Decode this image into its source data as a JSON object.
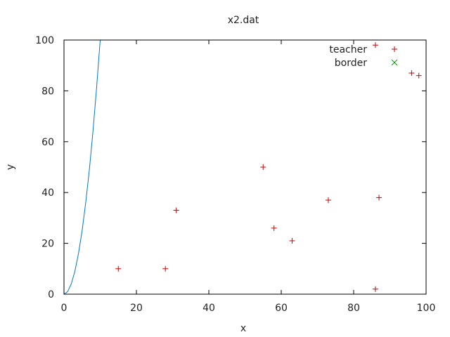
{
  "chart_data": {
    "type": "scatter",
    "title": "x2.dat",
    "xlabel": "x",
    "ylabel": "y",
    "xlim": [
      0,
      100
    ],
    "ylim": [
      0,
      100
    ],
    "xticks": [
      0,
      20,
      40,
      60,
      80,
      100
    ],
    "yticks": [
      0,
      20,
      40,
      60,
      80,
      100
    ],
    "legend_position": "top-right",
    "series": [
      {
        "name": "teacher",
        "marker": "plus",
        "color": "#cc0000",
        "points": [
          {
            "x": 15,
            "y": 10
          },
          {
            "x": 28,
            "y": 10
          },
          {
            "x": 31,
            "y": 33
          },
          {
            "x": 55,
            "y": 50
          },
          {
            "x": 58,
            "y": 26
          },
          {
            "x": 63,
            "y": 21
          },
          {
            "x": 73,
            "y": 37
          },
          {
            "x": 86,
            "y": 98
          },
          {
            "x": 87,
            "y": 38
          },
          {
            "x": 86,
            "y": 2
          },
          {
            "x": 96,
            "y": 87
          },
          {
            "x": 98,
            "y": 86
          }
        ]
      },
      {
        "name": "border",
        "marker": "cross",
        "color": "#009900",
        "points": []
      }
    ],
    "curve": {
      "color": "#0077cc",
      "points": [
        [
          0,
          0
        ],
        [
          1,
          1
        ],
        [
          2,
          4
        ],
        [
          3,
          9
        ],
        [
          4,
          16
        ],
        [
          5,
          25
        ],
        [
          6,
          36
        ],
        [
          7,
          49
        ],
        [
          8,
          64
        ],
        [
          9,
          81
        ],
        [
          10,
          100
        ]
      ]
    }
  }
}
